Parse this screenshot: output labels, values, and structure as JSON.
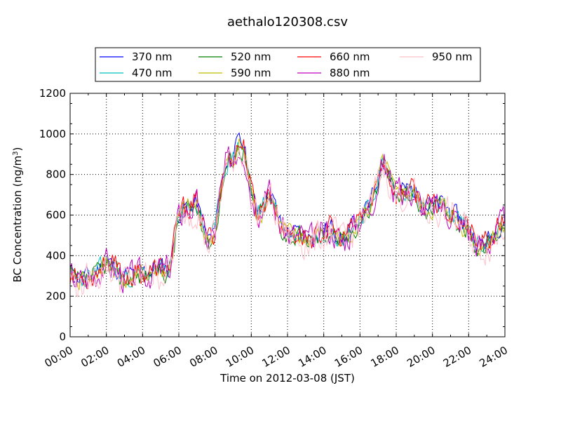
{
  "chart_data": {
    "type": "line",
    "title": "aethalo120308.csv",
    "xlabel": "Time on 2012-03-08 (JST)",
    "ylabel": "BC Concentration (ng/m",
    "ylabel_sup": "3",
    "ylabel_end": ")",
    "xlim": [
      "00:00",
      "24:00"
    ],
    "ylim": [
      0,
      1200
    ],
    "x_ticks": [
      "00:00",
      "02:00",
      "04:00",
      "06:00",
      "08:00",
      "10:00",
      "12:00",
      "14:00",
      "16:00",
      "18:00",
      "20:00",
      "22:00",
      "24:00"
    ],
    "y_ticks": [
      0,
      200,
      400,
      600,
      800,
      1000,
      1200
    ],
    "grid": true,
    "legend_position": "top-center",
    "series": [
      {
        "name": "370 nm",
        "color": "#0000ff",
        "offset": 0,
        "seed": 11,
        "amp": 0.55
      },
      {
        "name": "470 nm",
        "color": "#00bfbf",
        "offset": -10,
        "seed": 23,
        "amp": 0.55
      },
      {
        "name": "520 nm",
        "color": "#008000",
        "offset": -20,
        "seed": 37,
        "amp": 0.6
      },
      {
        "name": "590 nm",
        "color": "#bfbf00",
        "offset": -15,
        "seed": 41,
        "amp": 0.6
      },
      {
        "name": "660 nm",
        "color": "#ff0000",
        "offset": -5,
        "seed": 53,
        "amp": 0.7
      },
      {
        "name": "880 nm",
        "color": "#bf00bf",
        "offset": -10,
        "seed": 67,
        "amp": 0.85
      },
      {
        "name": "950 nm",
        "color": "#ffc0cb",
        "offset": -25,
        "seed": 79,
        "amp": 1.0
      }
    ],
    "base_profile": {
      "x_hours": [
        0,
        0.5,
        1,
        1.5,
        2,
        2.5,
        3,
        3.5,
        4,
        4.5,
        5,
        5.5,
        6,
        6.3,
        6.6,
        7,
        7.3,
        7.6,
        8,
        8.3,
        8.6,
        9,
        9.3,
        9.6,
        10,
        10.3,
        10.6,
        11,
        11.3,
        11.6,
        12,
        12.5,
        13,
        13.5,
        14,
        14.5,
        15,
        15.5,
        16,
        16.5,
        17,
        17.3,
        17.6,
        18,
        18.5,
        19,
        19.5,
        20,
        20.5,
        21,
        21.5,
        22,
        22.5,
        23,
        23.5,
        24
      ],
      "y_values": [
        320,
        290,
        300,
        330,
        380,
        340,
        300,
        310,
        320,
        330,
        340,
        350,
        600,
        640,
        650,
        660,
        560,
        480,
        530,
        720,
        860,
        900,
        960,
        940,
        720,
        620,
        640,
        720,
        650,
        560,
        520,
        510,
        500,
        490,
        530,
        540,
        480,
        530,
        600,
        640,
        780,
        880,
        810,
        700,
        730,
        720,
        650,
        640,
        660,
        620,
        580,
        540,
        460,
        470,
        520,
        590
      ],
      "x_unit": "hours after 00:00"
    }
  }
}
